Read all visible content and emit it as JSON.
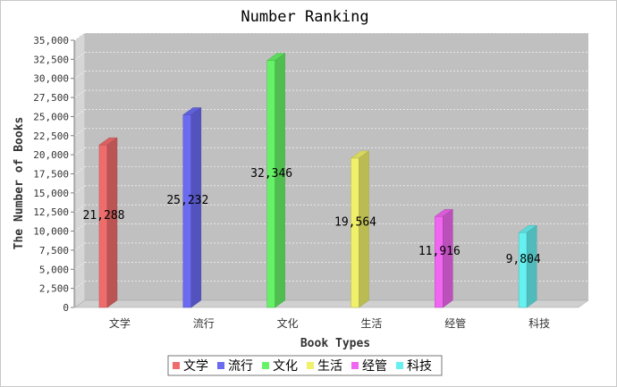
{
  "chart_data": {
    "type": "bar",
    "title": "Number Ranking",
    "xlabel": "Book Types",
    "ylabel": "The Number of Books",
    "categories": [
      "文学",
      "流行",
      "文化",
      "生活",
      "经管",
      "科技"
    ],
    "values": [
      21288,
      25232,
      32346,
      19564,
      11916,
      9804
    ],
    "value_labels": [
      "21,288",
      "25,232",
      "32,346",
      "19,564",
      "11,916",
      "9,804"
    ],
    "colors": [
      "#f06c6c",
      "#6b6bf2",
      "#66f266",
      "#f0f06a",
      "#f066f0",
      "#66f0f0"
    ],
    "ylim": [
      0,
      35000
    ],
    "yticks": [
      0,
      2500,
      5000,
      7500,
      10000,
      12500,
      15000,
      17500,
      20000,
      22500,
      25000,
      27500,
      30000,
      32500,
      35000
    ],
    "ytick_labels": [
      "0",
      "2,500",
      "5,000",
      "7,500",
      "10,000",
      "12,500",
      "15,000",
      "17,500",
      "20,000",
      "22,500",
      "25,000",
      "27,500",
      "30,000",
      "32,500",
      "35,000"
    ],
    "grid": true,
    "legend": {
      "placement": "bottom-center",
      "entries": [
        "文学",
        "流行",
        "文化",
        "生活",
        "经管",
        "科技"
      ]
    },
    "style": "3d-bar",
    "plot_background": "#c0c0c0"
  }
}
